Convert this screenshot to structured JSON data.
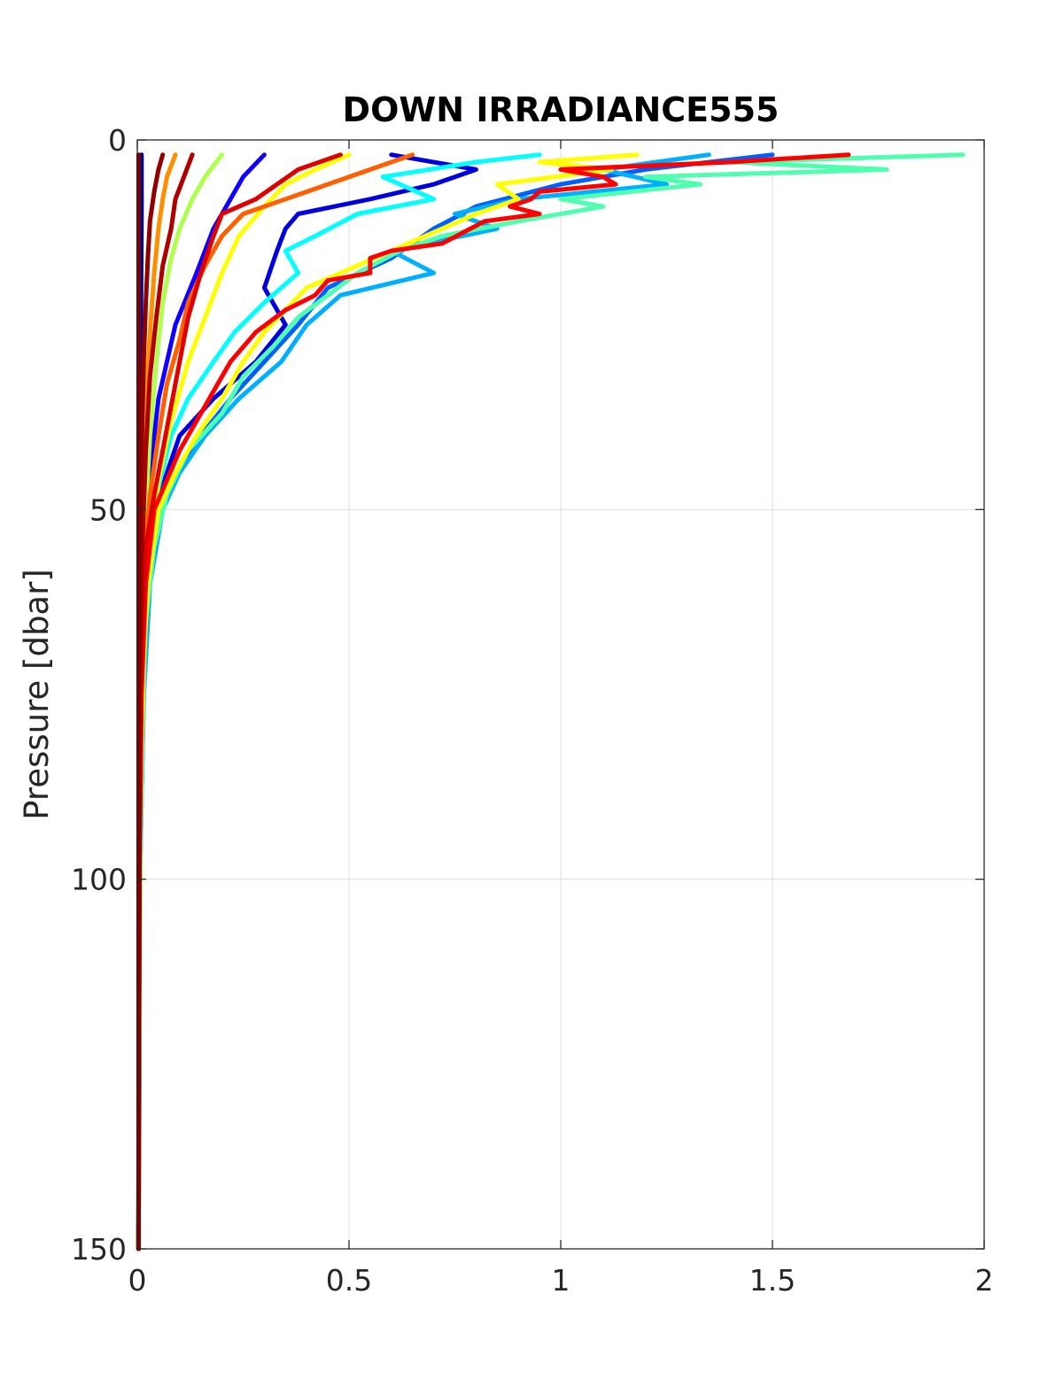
{
  "chart_data": {
    "type": "line",
    "title": "DOWN IRRADIANCE555",
    "xlabel": "",
    "ylabel": "Pressure [dbar]",
    "xlim": [
      0,
      2
    ],
    "ylim": [
      0,
      150
    ],
    "y_reversed": true,
    "grid": true,
    "x_ticks": [
      0,
      0.5,
      1,
      1.5,
      2
    ],
    "x_tick_labels": [
      "0",
      "0.5",
      "1",
      "1.5",
      "2"
    ],
    "y_ticks": [
      0,
      50,
      100,
      150
    ],
    "y_tick_labels": [
      "0",
      "50",
      "100",
      "150"
    ],
    "series": [
      {
        "color": "#00008f",
        "points": [
          [
            0.01,
            2
          ],
          [
            0.01,
            10
          ],
          [
            0.008,
            30
          ],
          [
            0.006,
            60
          ],
          [
            0.004,
            100
          ],
          [
            0.003,
            150
          ]
        ]
      },
      {
        "color": "#0000df",
        "points": [
          [
            0.6,
            2
          ],
          [
            0.8,
            4
          ],
          [
            0.7,
            6
          ],
          [
            0.55,
            8
          ],
          [
            0.38,
            10
          ],
          [
            0.35,
            12
          ],
          [
            0.33,
            15
          ],
          [
            0.3,
            20
          ],
          [
            0.35,
            25
          ],
          [
            0.28,
            30
          ],
          [
            0.18,
            35
          ],
          [
            0.1,
            40
          ],
          [
            0.07,
            45
          ],
          [
            0.04,
            50
          ],
          [
            0.02,
            60
          ],
          [
            0.01,
            80
          ],
          [
            0.005,
            100
          ],
          [
            0.003,
            150
          ]
        ]
      },
      {
        "color": "#0f00ff",
        "points": [
          [
            0.3,
            2
          ],
          [
            0.25,
            5
          ],
          [
            0.22,
            8
          ],
          [
            0.18,
            12
          ],
          [
            0.14,
            18
          ],
          [
            0.09,
            25
          ],
          [
            0.05,
            35
          ],
          [
            0.03,
            45
          ],
          [
            0.02,
            55
          ],
          [
            0.01,
            70
          ],
          [
            0.005,
            100
          ],
          [
            0.003,
            150
          ]
        ]
      },
      {
        "color": "#005fff",
        "points": [
          [
            1.5,
            2
          ],
          [
            1.2,
            4
          ],
          [
            1.0,
            6
          ],
          [
            0.8,
            9
          ],
          [
            0.7,
            12
          ],
          [
            0.6,
            16
          ],
          [
            0.45,
            20
          ],
          [
            0.38,
            25
          ],
          [
            0.3,
            30
          ],
          [
            0.22,
            35
          ],
          [
            0.15,
            40
          ],
          [
            0.09,
            45
          ],
          [
            0.06,
            50
          ],
          [
            0.03,
            60
          ],
          [
            0.015,
            75
          ],
          [
            0.006,
            100
          ],
          [
            0.003,
            150
          ]
        ]
      },
      {
        "color": "#00afff",
        "points": [
          [
            1.35,
            2
          ],
          [
            1.1,
            4
          ],
          [
            1.25,
            6
          ],
          [
            0.9,
            8
          ],
          [
            0.75,
            10
          ],
          [
            0.85,
            12
          ],
          [
            0.6,
            15
          ],
          [
            0.7,
            18
          ],
          [
            0.48,
            21
          ],
          [
            0.4,
            25
          ],
          [
            0.34,
            30
          ],
          [
            0.24,
            35
          ],
          [
            0.16,
            40
          ],
          [
            0.1,
            45
          ],
          [
            0.06,
            50
          ],
          [
            0.03,
            60
          ],
          [
            0.015,
            75
          ],
          [
            0.006,
            100
          ],
          [
            0.003,
            150
          ]
        ]
      },
      {
        "color": "#00ffff",
        "points": [
          [
            0.95,
            2
          ],
          [
            0.8,
            3
          ],
          [
            0.58,
            5
          ],
          [
            0.7,
            8
          ],
          [
            0.52,
            10
          ],
          [
            0.42,
            13
          ],
          [
            0.35,
            15
          ],
          [
            0.38,
            18
          ],
          [
            0.3,
            22
          ],
          [
            0.23,
            26
          ],
          [
            0.18,
            30
          ],
          [
            0.12,
            35
          ],
          [
            0.08,
            40
          ],
          [
            0.05,
            47
          ],
          [
            0.03,
            55
          ],
          [
            0.015,
            70
          ],
          [
            0.007,
            100
          ],
          [
            0.003,
            150
          ]
        ]
      },
      {
        "color": "#4fffaf",
        "points": [
          [
            1.95,
            2
          ],
          [
            1.4,
            3
          ],
          [
            1.77,
            4
          ],
          [
            1.2,
            5
          ],
          [
            1.33,
            6
          ],
          [
            1.0,
            8
          ],
          [
            1.1,
            9
          ],
          [
            0.9,
            11
          ],
          [
            0.72,
            13
          ],
          [
            0.62,
            15
          ],
          [
            0.52,
            18
          ],
          [
            0.45,
            21
          ],
          [
            0.38,
            24
          ],
          [
            0.32,
            28
          ],
          [
            0.25,
            32
          ],
          [
            0.2,
            37
          ],
          [
            0.12,
            42
          ],
          [
            0.07,
            48
          ],
          [
            0.04,
            55
          ],
          [
            0.02,
            65
          ],
          [
            0.008,
            85
          ],
          [
            0.003,
            150
          ]
        ]
      },
      {
        "color": "#afff4f",
        "points": [
          [
            0.2,
            2
          ],
          [
            0.16,
            5
          ],
          [
            0.13,
            8
          ],
          [
            0.1,
            12
          ],
          [
            0.08,
            16
          ],
          [
            0.06,
            22
          ],
          [
            0.045,
            30
          ],
          [
            0.03,
            40
          ],
          [
            0.02,
            50
          ],
          [
            0.01,
            65
          ],
          [
            0.005,
            90
          ],
          [
            0.003,
            150
          ]
        ]
      },
      {
        "color": "#ffff00",
        "points": [
          [
            1.18,
            2
          ],
          [
            0.95,
            3
          ],
          [
            1.12,
            4
          ],
          [
            0.85,
            6
          ],
          [
            0.9,
            8
          ],
          [
            0.8,
            10
          ],
          [
            0.72,
            12
          ],
          [
            0.6,
            15
          ],
          [
            0.48,
            18
          ],
          [
            0.4,
            20
          ],
          [
            0.35,
            23
          ],
          [
            0.3,
            26
          ],
          [
            0.25,
            30
          ],
          [
            0.2,
            35
          ],
          [
            0.14,
            40
          ],
          [
            0.09,
            45
          ],
          [
            0.05,
            50
          ],
          [
            0.025,
            60
          ],
          [
            0.01,
            75
          ],
          [
            0.005,
            100
          ],
          [
            0.003,
            150
          ]
        ]
      },
      {
        "color": "#ffff00",
        "points": [
          [
            0.5,
            2
          ],
          [
            0.42,
            4
          ],
          [
            0.35,
            6
          ],
          [
            0.3,
            9
          ],
          [
            0.24,
            13
          ],
          [
            0.2,
            18
          ],
          [
            0.16,
            24
          ],
          [
            0.12,
            30
          ],
          [
            0.08,
            38
          ],
          [
            0.05,
            46
          ],
          [
            0.03,
            55
          ],
          [
            0.015,
            70
          ],
          [
            0.006,
            95
          ],
          [
            0.003,
            150
          ]
        ]
      },
      {
        "color": "#ff8f00",
        "points": [
          [
            0.09,
            2
          ],
          [
            0.07,
            5
          ],
          [
            0.06,
            8
          ],
          [
            0.05,
            12
          ],
          [
            0.04,
            18
          ],
          [
            0.03,
            26
          ],
          [
            0.02,
            36
          ],
          [
            0.015,
            45
          ],
          [
            0.01,
            55
          ],
          [
            0.006,
            75
          ],
          [
            0.004,
            100
          ],
          [
            0.003,
            150
          ]
        ]
      },
      {
        "color": "#ff5f00",
        "points": [
          [
            0.65,
            2
          ],
          [
            0.55,
            4
          ],
          [
            0.45,
            6
          ],
          [
            0.35,
            8
          ],
          [
            0.25,
            10
          ],
          [
            0.2,
            13
          ],
          [
            0.16,
            17
          ],
          [
            0.12,
            22
          ],
          [
            0.1,
            27
          ],
          [
            0.07,
            33
          ],
          [
            0.05,
            40
          ],
          [
            0.03,
            48
          ],
          [
            0.02,
            55
          ],
          [
            0.01,
            70
          ],
          [
            0.005,
            95
          ],
          [
            0.003,
            150
          ]
        ]
      },
      {
        "color": "#ff0000",
        "points": [
          [
            1.68,
            2
          ],
          [
            1.4,
            3
          ],
          [
            1.0,
            4
          ],
          [
            1.1,
            5
          ],
          [
            1.13,
            6
          ],
          [
            0.95,
            7
          ],
          [
            0.93,
            8
          ],
          [
            0.88,
            9
          ],
          [
            0.95,
            10
          ],
          [
            0.82,
            11
          ],
          [
            0.72,
            14
          ],
          [
            0.6,
            15
          ],
          [
            0.55,
            16
          ],
          [
            0.55,
            18
          ],
          [
            0.45,
            19
          ],
          [
            0.42,
            21
          ],
          [
            0.35,
            23
          ],
          [
            0.28,
            26
          ],
          [
            0.22,
            30
          ],
          [
            0.18,
            34
          ],
          [
            0.14,
            38
          ],
          [
            0.1,
            42
          ],
          [
            0.07,
            46
          ],
          [
            0.04,
            50
          ],
          [
            0.02,
            60
          ],
          [
            0.01,
            75
          ],
          [
            0.005,
            100
          ],
          [
            0.003,
            150
          ]
        ]
      },
      {
        "color": "#df0000",
        "points": [
          [
            0.48,
            2
          ],
          [
            0.38,
            4
          ],
          [
            0.33,
            6
          ],
          [
            0.28,
            8
          ],
          [
            0.2,
            10
          ],
          [
            0.18,
            13
          ],
          [
            0.15,
            18
          ],
          [
            0.12,
            24
          ],
          [
            0.1,
            30
          ],
          [
            0.08,
            36
          ],
          [
            0.06,
            42
          ],
          [
            0.04,
            48
          ],
          [
            0.02,
            55
          ],
          [
            0.01,
            70
          ],
          [
            0.005,
            95
          ],
          [
            0.003,
            150
          ]
        ]
      },
      {
        "color": "#af0000",
        "points": [
          [
            0.13,
            2
          ],
          [
            0.11,
            5
          ],
          [
            0.09,
            8
          ],
          [
            0.08,
            12
          ],
          [
            0.06,
            17
          ],
          [
            0.045,
            24
          ],
          [
            0.03,
            32
          ],
          [
            0.02,
            42
          ],
          [
            0.012,
            55
          ],
          [
            0.006,
            75
          ],
          [
            0.003,
            150
          ]
        ]
      },
      {
        "color": "#8f0000",
        "points": [
          [
            0.06,
            2
          ],
          [
            0.05,
            4
          ],
          [
            0.04,
            7
          ],
          [
            0.03,
            11
          ],
          [
            0.025,
            16
          ],
          [
            0.02,
            22
          ],
          [
            0.015,
            30
          ],
          [
            0.01,
            42
          ],
          [
            0.007,
            55
          ],
          [
            0.004,
            80
          ],
          [
            0.003,
            150
          ]
        ]
      },
      {
        "color": "#800000",
        "points": [
          [
            0.003,
            2
          ],
          [
            0.003,
            50
          ],
          [
            0.003,
            100
          ],
          [
            0.003,
            150
          ]
        ]
      }
    ]
  }
}
